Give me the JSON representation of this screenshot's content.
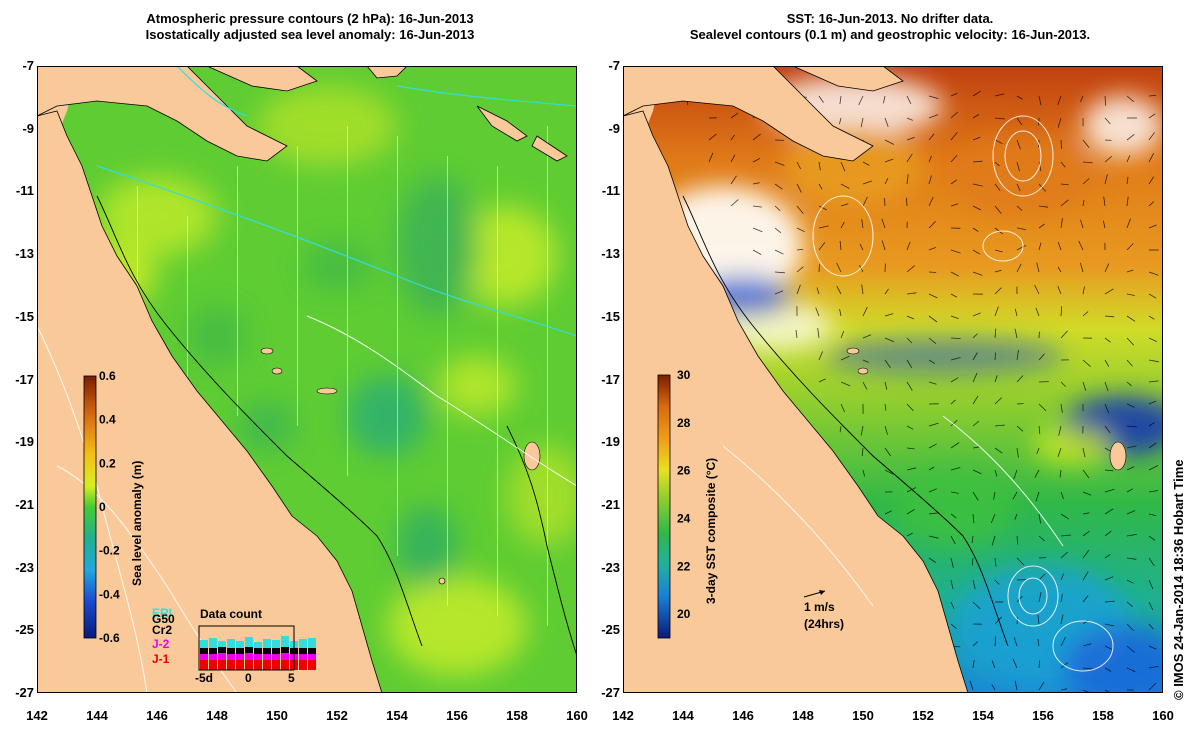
{
  "left_panel": {
    "title_line1": "Atmospheric pressure contours (2 hPa): 16-Jun-2013",
    "title_line2": "Isostatically adjusted sea level anomaly: 16-Jun-2013",
    "colorbar": {
      "label": "Sea level anomaly (m)",
      "min": -0.6,
      "max": 0.6,
      "ticks": [
        "0.6",
        "0.4",
        "0.2",
        "0",
        "-0.2",
        "-0.4",
        "-0.6"
      ]
    },
    "data_count": {
      "title": "Data count",
      "satellites": [
        {
          "name": "ERI",
          "color": "#33dddd"
        },
        {
          "name": "G50",
          "color": "#000000"
        },
        {
          "name": "Cr2",
          "color": "#000000"
        },
        {
          "name": "J-2",
          "color": "#ee00ee"
        },
        {
          "name": "J-1",
          "color": "#ee0000"
        }
      ],
      "axis_ticks": [
        "-5d",
        "0",
        "5"
      ]
    }
  },
  "right_panel": {
    "title_line1": "SST: 16-Jun-2013. No drifter data.",
    "title_line2": "Sealevel contours (0.1 m) and geostrophic velocity: 16-Jun-2013.",
    "colorbar": {
      "label": "3-day SST composite (°C)",
      "min": 19,
      "max": 30,
      "ticks": [
        "30",
        "28",
        "26",
        "24",
        "22",
        "20"
      ]
    },
    "velocity_scale": {
      "label": "1 m/s",
      "sublabel": "(24hrs)"
    }
  },
  "axes": {
    "lat_ticks": [
      "-7",
      "-9",
      "-11",
      "-13",
      "-15",
      "-17",
      "-19",
      "-21",
      "-23",
      "-25",
      "-27"
    ],
    "lon_ticks": [
      "142",
      "144",
      "146",
      "148",
      "150",
      "152",
      "154",
      "156",
      "158",
      "160"
    ],
    "lat_range": [
      -27,
      -7
    ],
    "lon_range": [
      142,
      160
    ]
  },
  "credit": "© IMOS 24-Jan-2014 18:36 Hobart Time",
  "colors": {
    "land": "#f9c99a",
    "sla_green": "#55cc33"
  }
}
